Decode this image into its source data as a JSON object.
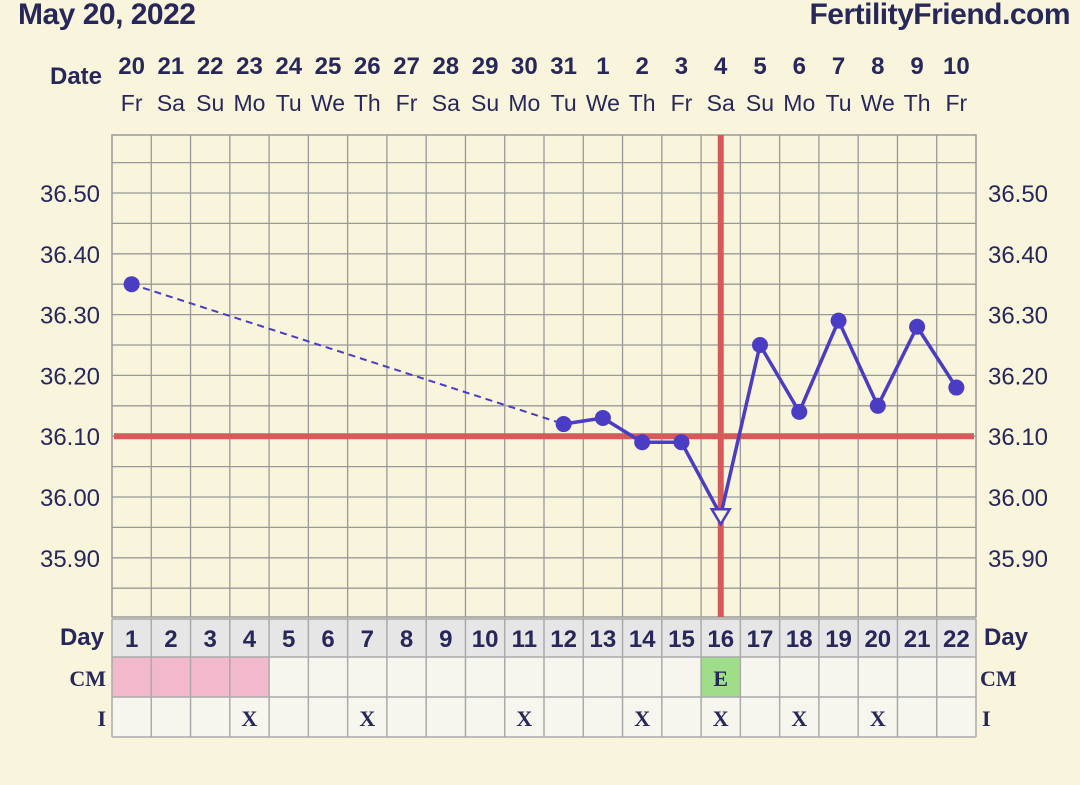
{
  "header": {
    "date": "May 20, 2022",
    "site": "FertilityFriend.com"
  },
  "labels": {
    "date_row": "Date",
    "day_row": "Day",
    "cm_row": "CM",
    "i_row": "I"
  },
  "colors": {
    "background": "#f9f4dc",
    "grid": "#999999",
    "line": "#4b3cc4",
    "coverline": "#d65a5a",
    "menstruation": "#f2b8cb",
    "cm_eggwhite": "#9fdd8a",
    "text": "#27275a"
  },
  "chart_data": {
    "type": "line",
    "dates": [
      "20",
      "21",
      "22",
      "23",
      "24",
      "25",
      "26",
      "27",
      "28",
      "29",
      "30",
      "31",
      "1",
      "2",
      "3",
      "4",
      "5",
      "6",
      "7",
      "8",
      "9",
      "10"
    ],
    "weekdays": [
      "Fr",
      "Sa",
      "Su",
      "Mo",
      "Tu",
      "We",
      "Th",
      "Fr",
      "Sa",
      "Su",
      "Mo",
      "Tu",
      "We",
      "Th",
      "Fr",
      "Sa",
      "Su",
      "Mo",
      "Tu",
      "We",
      "Th",
      "Fr"
    ],
    "cycle_days": [
      "1",
      "2",
      "3",
      "4",
      "5",
      "6",
      "7",
      "8",
      "9",
      "10",
      "11",
      "12",
      "13",
      "14",
      "15",
      "16",
      "17",
      "18",
      "19",
      "20",
      "21",
      "22"
    ],
    "y_ticks": [
      "36.50",
      "36.40",
      "36.30",
      "36.20",
      "36.10",
      "36.00",
      "35.90"
    ],
    "y_tick_values": [
      36.5,
      36.4,
      36.3,
      36.2,
      36.1,
      36.0,
      35.9
    ],
    "ylim": [
      35.8,
      36.6
    ],
    "temperatures": [
      36.35,
      null,
      null,
      null,
      null,
      null,
      null,
      null,
      null,
      null,
      null,
      36.12,
      36.13,
      36.09,
      36.09,
      35.97,
      36.25,
      36.14,
      36.29,
      36.15,
      36.28,
      36.18
    ],
    "dashed_segment": [
      1,
      12
    ],
    "open_marker_day": 16,
    "coverline": 36.1,
    "ovulation_day": 16,
    "cm": [
      "P",
      "P",
      "P",
      "P",
      "",
      "",
      "",
      "",
      "",
      "",
      "",
      "",
      "",
      "",
      "",
      "E",
      "",
      "",
      "",
      "",
      "",
      ""
    ],
    "intercourse": [
      "",
      "",
      "",
      "X",
      "",
      "",
      "X",
      "",
      "",
      "",
      "X",
      "",
      "",
      "X",
      "",
      "X",
      "",
      "X",
      "",
      "X",
      "",
      ""
    ]
  }
}
